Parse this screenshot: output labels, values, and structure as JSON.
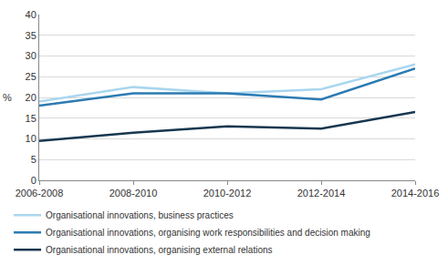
{
  "chart_data": {
    "type": "line",
    "y_label": "%",
    "categories": [
      "2006-2008",
      "2008-2010",
      "2010-2012",
      "2012-2014",
      "2014-2016"
    ],
    "series": [
      {
        "name": "Organisational innovations, business practices",
        "color": "#a9d6ee",
        "values": [
          19,
          22.5,
          21,
          22,
          28
        ]
      },
      {
        "name": "Organisational innovations, organising work responsibilities and decision making",
        "color": "#2b7bb3",
        "values": [
          18,
          21,
          21,
          19.5,
          27
        ]
      },
      {
        "name": "Organisational innovations, organising external relations",
        "color": "#17374f",
        "values": [
          9.5,
          11.5,
          13,
          12.5,
          16.5
        ]
      }
    ],
    "ylim": [
      0,
      40
    ],
    "yticks": [
      0,
      5,
      10,
      15,
      20,
      25,
      30,
      35,
      40
    ],
    "grid": true,
    "legend": "bottom"
  }
}
